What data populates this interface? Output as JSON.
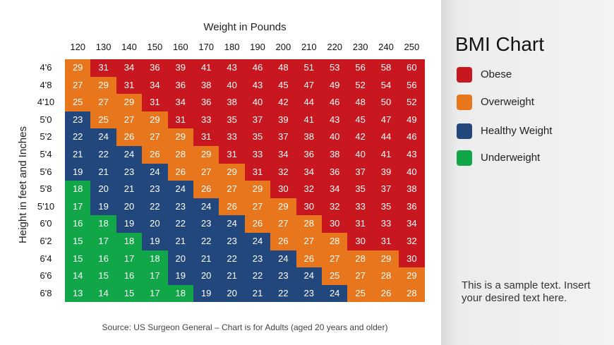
{
  "colors": {
    "obese": "#c8171e",
    "overweight": "#e8761c",
    "healthy": "#22477d",
    "underweight": "#11a647"
  },
  "legend": {
    "title": "BMI Chart",
    "items": [
      {
        "label": "Obese",
        "color": "#c8171e"
      },
      {
        "label": "Overweight",
        "color": "#e8761c"
      },
      {
        "label": "Healthy Weight",
        "color": "#22477d"
      },
      {
        "label": "Underweight",
        "color": "#11a647"
      }
    ]
  },
  "sample_text": "This is a sample text. Insert your desired text here.",
  "chart_data": {
    "type": "heatmap",
    "xlabel": "Weight in Pounds",
    "ylabel": "Height in feet and Inches",
    "x_labels": [
      "120",
      "130",
      "140",
      "150",
      "160",
      "170",
      "180",
      "190",
      "200",
      "210",
      "220",
      "230",
      "240",
      "250"
    ],
    "y_labels": [
      "4'6",
      "4'8",
      "4'10",
      "5'0",
      "5'2",
      "5'4",
      "5'6",
      "5'8",
      "5'10",
      "6'0",
      "6'2",
      "6'4",
      "6'6",
      "6'8"
    ],
    "values": [
      [
        29,
        31,
        34,
        36,
        39,
        41,
        43,
        46,
        48,
        51,
        53,
        56,
        58,
        60
      ],
      [
        27,
        29,
        31,
        34,
        36,
        38,
        40,
        43,
        45,
        47,
        49,
        52,
        54,
        56
      ],
      [
        25,
        27,
        29,
        31,
        34,
        36,
        38,
        40,
        42,
        44,
        46,
        48,
        50,
        52
      ],
      [
        23,
        25,
        27,
        29,
        31,
        33,
        35,
        37,
        39,
        41,
        43,
        45,
        47,
        49
      ],
      [
        22,
        24,
        26,
        27,
        29,
        31,
        33,
        35,
        37,
        38,
        40,
        42,
        44,
        46
      ],
      [
        21,
        22,
        24,
        26,
        28,
        29,
        31,
        33,
        34,
        36,
        38,
        40,
        41,
        43
      ],
      [
        19,
        21,
        23,
        24,
        26,
        27,
        29,
        31,
        32,
        34,
        36,
        37,
        39,
        40
      ],
      [
        18,
        20,
        21,
        23,
        24,
        26,
        27,
        29,
        30,
        32,
        34,
        35,
        37,
        38
      ],
      [
        17,
        19,
        20,
        22,
        23,
        24,
        26,
        27,
        29,
        30,
        32,
        33,
        35,
        36
      ],
      [
        16,
        18,
        19,
        20,
        22,
        23,
        24,
        26,
        27,
        28,
        30,
        31,
        33,
        34
      ],
      [
        15,
        17,
        18,
        19,
        21,
        22,
        23,
        24,
        26,
        27,
        28,
        30,
        31,
        32
      ],
      [
        15,
        16,
        17,
        18,
        20,
        21,
        22,
        23,
        24,
        26,
        27,
        28,
        29,
        30
      ],
      [
        14,
        15,
        16,
        17,
        19,
        20,
        21,
        22,
        23,
        24,
        25,
        27,
        28,
        29
      ],
      [
        13,
        14,
        15,
        17,
        18,
        19,
        20,
        21,
        22,
        23,
        24,
        25,
        26,
        28
      ]
    ],
    "categories_grid": [
      [
        "ow",
        "ob",
        "ob",
        "ob",
        "ob",
        "ob",
        "ob",
        "ob",
        "ob",
        "ob",
        "ob",
        "ob",
        "ob",
        "ob"
      ],
      [
        "ow",
        "ow",
        "ob",
        "ob",
        "ob",
        "ob",
        "ob",
        "ob",
        "ob",
        "ob",
        "ob",
        "ob",
        "ob",
        "ob"
      ],
      [
        "ow",
        "ow",
        "ow",
        "ob",
        "ob",
        "ob",
        "ob",
        "ob",
        "ob",
        "ob",
        "ob",
        "ob",
        "ob",
        "ob"
      ],
      [
        "hw",
        "ow",
        "ow",
        "ow",
        "ob",
        "ob",
        "ob",
        "ob",
        "ob",
        "ob",
        "ob",
        "ob",
        "ob",
        "ob"
      ],
      [
        "hw",
        "hw",
        "ow",
        "ow",
        "ow",
        "ob",
        "ob",
        "ob",
        "ob",
        "ob",
        "ob",
        "ob",
        "ob",
        "ob"
      ],
      [
        "hw",
        "hw",
        "hw",
        "ow",
        "ow",
        "ow",
        "ob",
        "ob",
        "ob",
        "ob",
        "ob",
        "ob",
        "ob",
        "ob"
      ],
      [
        "hw",
        "hw",
        "hw",
        "hw",
        "ow",
        "ow",
        "ow",
        "ob",
        "ob",
        "ob",
        "ob",
        "ob",
        "ob",
        "ob"
      ],
      [
        "uw",
        "hw",
        "hw",
        "hw",
        "hw",
        "ow",
        "ow",
        "ow",
        "ob",
        "ob",
        "ob",
        "ob",
        "ob",
        "ob"
      ],
      [
        "uw",
        "hw",
        "hw",
        "hw",
        "hw",
        "hw",
        "ow",
        "ow",
        "ow",
        "ob",
        "ob",
        "ob",
        "ob",
        "ob"
      ],
      [
        "uw",
        "uw",
        "hw",
        "hw",
        "hw",
        "hw",
        "hw",
        "ow",
        "ow",
        "ow",
        "ob",
        "ob",
        "ob",
        "ob"
      ],
      [
        "uw",
        "uw",
        "uw",
        "hw",
        "hw",
        "hw",
        "hw",
        "hw",
        "ow",
        "ow",
        "ow",
        "ob",
        "ob",
        "ob"
      ],
      [
        "uw",
        "uw",
        "uw",
        "uw",
        "hw",
        "hw",
        "hw",
        "hw",
        "hw",
        "ow",
        "ow",
        "ow",
        "ow",
        "ob"
      ],
      [
        "uw",
        "uw",
        "uw",
        "uw",
        "hw",
        "hw",
        "hw",
        "hw",
        "hw",
        "hw",
        "ow",
        "ow",
        "ow",
        "ow"
      ],
      [
        "uw",
        "uw",
        "uw",
        "uw",
        "uw",
        "hw",
        "hw",
        "hw",
        "hw",
        "hw",
        "hw",
        "ow",
        "ow",
        "ow"
      ]
    ],
    "source": "Source: US Surgeon General – Chart is for Adults (aged 20 years and older)"
  }
}
